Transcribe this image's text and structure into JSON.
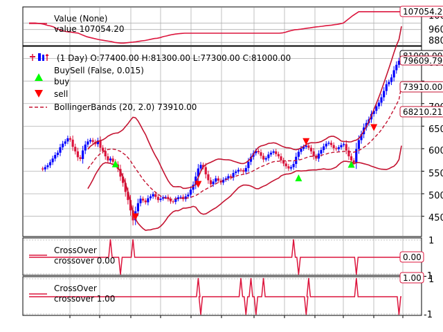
{
  "colors": {
    "value": "#dc143c",
    "up": "#0000ff",
    "down": "#dc143c",
    "bb": "#c41230",
    "buy": "#00ff00",
    "sell": "#ff0000",
    "grid": "#b0b0b0"
  },
  "chart_data": [
    {
      "type": "line",
      "panel": "broker-value",
      "legend": {
        "title": "Value (None)",
        "entry": "value 107054.20"
      },
      "yticks": [
        "100000",
        "96000",
        "88000"
      ],
      "ylim": [
        86000,
        110000
      ],
      "last_value_label": "107054.20",
      "series": [
        {
          "name": "value",
          "values": [
            100000,
            100000,
            100000,
            99800,
            99600,
            99200,
            98600,
            98200,
            97600,
            96600,
            95800,
            95200,
            94800,
            94500,
            94300,
            94000,
            93800,
            93000,
            92200,
            91500,
            91000,
            90600,
            90100,
            89700,
            89400,
            89100,
            88800,
            88500,
            88000,
            87800,
            87600,
            87600,
            87800,
            88000,
            88200,
            88400,
            88700,
            89000,
            89200,
            89600,
            90000,
            90400,
            90600,
            91000,
            91600,
            92000,
            92500,
            92900,
            93200,
            93400,
            93600,
            93700,
            93700,
            93700,
            93700,
            93700,
            93700,
            93700,
            93700,
            93700,
            93700,
            93700,
            93700,
            93700,
            93700,
            93700,
            93700,
            93700,
            93700,
            93700,
            93700,
            93700,
            93700,
            93700,
            93700,
            93700,
            93700,
            93700,
            93700,
            93700,
            93700,
            93700,
            93700,
            93900,
            94300,
            94900,
            95400,
            95800,
            96000,
            96200,
            96500,
            96800,
            97000,
            97300,
            97600,
            97800,
            98000,
            98300,
            98500,
            98700,
            99000,
            99200,
            99600,
            100000,
            101500,
            103000,
            104500,
            105800,
            107054.2,
            107054.2,
            107054.2,
            107054.2,
            107054.2,
            107054.2,
            107054.2,
            107054.2,
            107054.2,
            107054.2,
            107054.2,
            107054.2,
            107054.2,
            107054.2,
            107054.2
          ]
        }
      ]
    },
    {
      "type": "candlestick",
      "panel": "price",
      "legend": {
        "ohlc": "(1 Day) O:77400.00 H:81300.00 L:77300.00 C:81000.00",
        "buysell_title": "BuySell (False, 0.015)",
        "buy": "buy",
        "sell": "sell",
        "bb": "BollingerBands (20, 2.0) 73910.00"
      },
      "yticks": [
        "80000",
        "75000",
        "70000",
        "65000",
        "60000",
        "55000",
        "50000",
        "45000"
      ],
      "ylim": [
        40500,
        82700
      ],
      "last_labels": [
        "81000.00",
        "79609.79",
        "73910.00",
        "68210.21"
      ],
      "close": [
        55600,
        55400,
        55900,
        56300,
        57000,
        57800,
        58600,
        59100,
        60300,
        61100,
        61600,
        62300,
        62000,
        60400,
        59400,
        58100,
        57700,
        59600,
        60900,
        61600,
        61900,
        61500,
        61000,
        61800,
        60200,
        59500,
        58300,
        57400,
        57800,
        57100,
        56500,
        55500,
        53800,
        52400,
        50400,
        48600,
        46300,
        44100,
        46100,
        47900,
        48900,
        48500,
        48100,
        49000,
        49400,
        49900,
        49300,
        48600,
        48900,
        49200,
        49300,
        48800,
        48300,
        48200,
        48800,
        49200,
        49300,
        48800,
        49400,
        49800,
        50900,
        52000,
        53800,
        55600,
        56400,
        55900,
        54300,
        53000,
        52100,
        52700,
        53400,
        52900,
        52500,
        53100,
        53400,
        53900,
        53600,
        54600,
        54900,
        55300,
        55200,
        54900,
        55700,
        57100,
        58200,
        59000,
        59500,
        59200,
        58400,
        57600,
        57900,
        58700,
        59100,
        59400,
        58800,
        58300,
        57400,
        56700,
        56100,
        55600,
        55900,
        56600,
        58200,
        59300,
        60000,
        60400,
        60700,
        60200,
        59400,
        58300,
        57800,
        58900,
        59700,
        60500,
        61100,
        61300,
        60800,
        60100,
        59900,
        60300,
        60800,
        61000,
        59600,
        58300,
        57400,
        56900,
        59900,
        61900,
        63200,
        64700,
        65700,
        66500,
        67700,
        68400,
        69400,
        70200,
        71400,
        72800,
        74300,
        74800,
        75800,
        77400,
        78600,
        79500,
        81000
      ],
      "bb_mid": [
        null,
        null,
        null,
        null,
        null,
        null,
        null,
        null,
        null,
        null,
        null,
        null,
        null,
        null,
        null,
        null,
        null,
        null,
        null,
        55500,
        56300,
        57000,
        57800,
        58400,
        58900,
        59300,
        59600,
        59800,
        59900,
        59900,
        59800,
        59600,
        59400,
        59000,
        58600,
        58000,
        57300,
        56400,
        55600,
        54800,
        54000,
        53200,
        52500,
        51900,
        51300,
        50800,
        50300,
        49900,
        49500,
        49200,
        49000,
        48900,
        48800,
        48800,
        48900,
        48900,
        49000,
        49000,
        49000,
        49100,
        49200,
        49400,
        49600,
        49900,
        50300,
        50700,
        51000,
        51300,
        51600,
        51900,
        52200,
        52500,
        52700,
        52900,
        53100,
        53300,
        53500,
        53700,
        53900,
        54100,
        54200,
        54300,
        54400,
        54600,
        54800,
        55100,
        55400,
        55700,
        56000,
        56200,
        56400,
        56700,
        56900,
        57100,
        57200,
        57200,
        57300,
        57300,
        57300,
        57300,
        57300,
        57300,
        57400,
        57500,
        57600,
        57800,
        58000,
        58200,
        58300,
        58300,
        58300,
        58400,
        58500,
        58700,
        58800,
        59000,
        59100,
        59200,
        59200,
        59300,
        59300,
        59400,
        59400,
        59300,
        59300,
        59200,
        59400,
        59600,
        59900,
        60300,
        60700,
        61200,
        61700,
        62300,
        62900,
        63500,
        64200,
        65000,
        65800,
        66700,
        67700,
        68700,
        69800,
        70900,
        73910
      ]
    },
    {
      "type": "line",
      "panel": "crossover-1",
      "legend": {
        "title": "CrossOver",
        "entry": "crossover 0.00"
      },
      "yticks": [
        "1",
        "-1"
      ],
      "last_value_label": "0.00",
      "events": [
        {
          "index": 28,
          "value": 1
        },
        {
          "index": 32,
          "value": -1
        },
        {
          "index": 37,
          "value": 1
        },
        {
          "index": 101,
          "value": 1
        },
        {
          "index": 103,
          "value": -1
        },
        {
          "index": 126,
          "value": -1
        }
      ]
    },
    {
      "type": "line",
      "panel": "crossover-2",
      "legend": {
        "title": "CrossOver",
        "entry": "crossover 1.00"
      },
      "yticks": [
        "1",
        "-1"
      ],
      "last_value_label": "1.00",
      "events": [
        {
          "index": 63,
          "value": 1
        },
        {
          "index": 64,
          "value": -1
        },
        {
          "index": 80,
          "value": 1
        },
        {
          "index": 82,
          "value": -1
        },
        {
          "index": 84,
          "value": 1
        },
        {
          "index": 86,
          "value": -1
        },
        {
          "index": 89,
          "value": 1
        },
        {
          "index": 106,
          "value": -1
        },
        {
          "index": 107,
          "value": 1
        },
        {
          "index": 126,
          "value": 1
        },
        {
          "index": 143,
          "value": -1
        }
      ]
    }
  ],
  "signals": {
    "buy": [
      {
        "index": 30,
        "price": 57400
      },
      {
        "index": 103,
        "price": 54300
      },
      {
        "index": 124,
        "price": 57300
      }
    ],
    "sell": [
      {
        "index": 38,
        "price": 44100
      },
      {
        "index": 63,
        "price": 51300
      },
      {
        "index": 106,
        "price": 60800
      },
      {
        "index": 133,
        "price": 63900
      }
    ]
  }
}
